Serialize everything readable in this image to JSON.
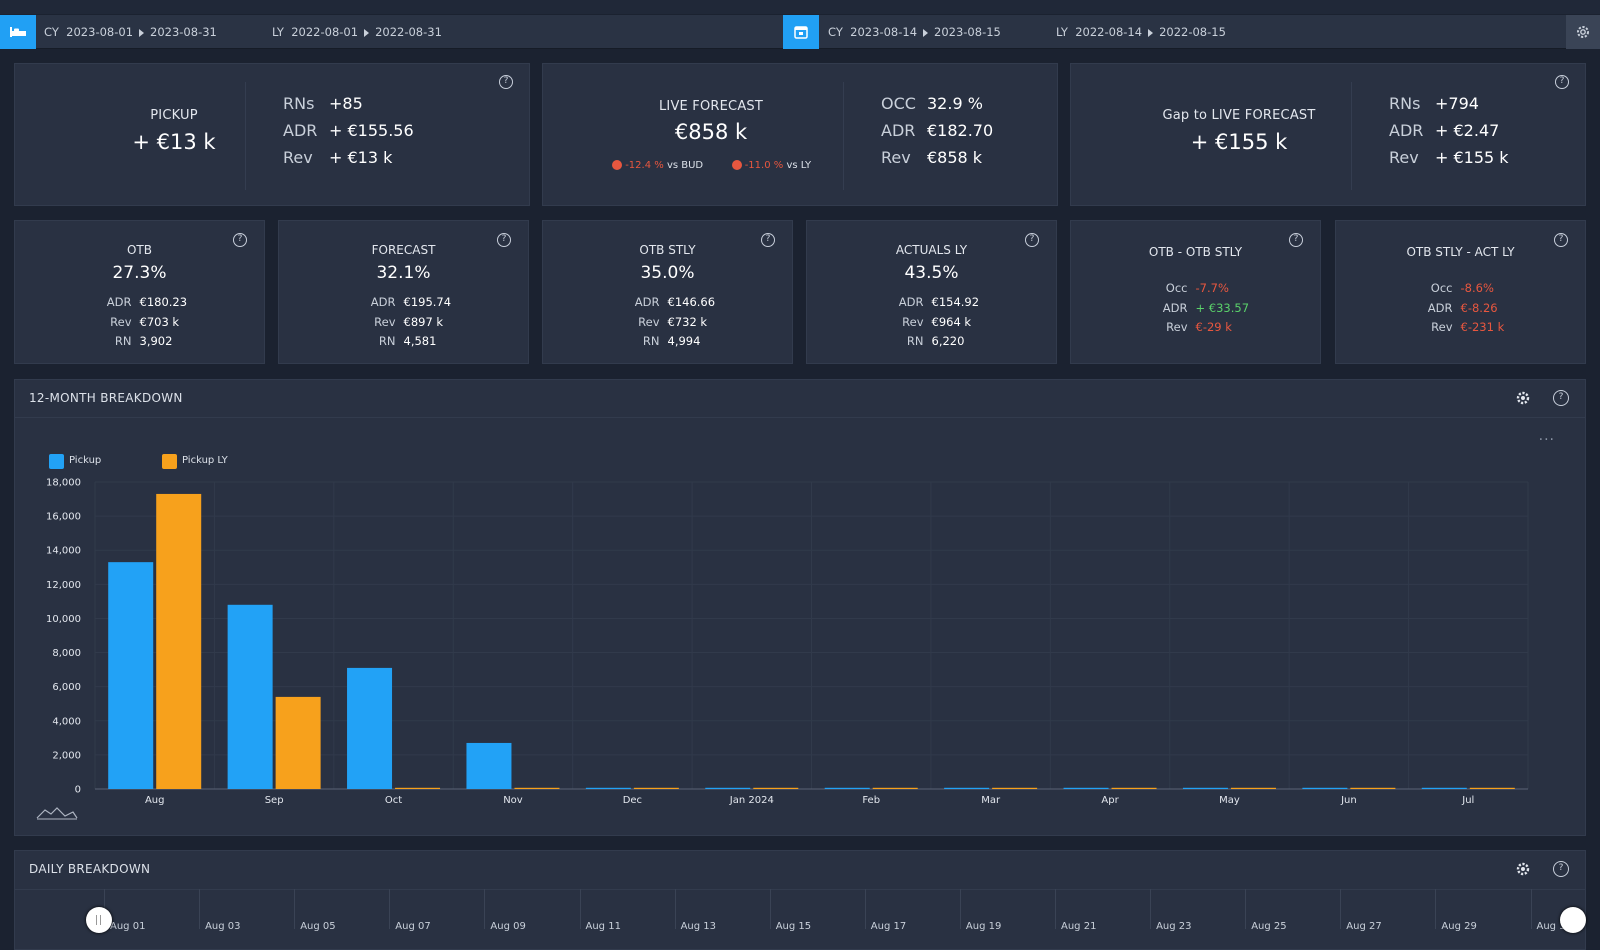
{
  "datebar": {
    "left_cy_label": "CY",
    "left_cy_from": "2023-08-01",
    "left_cy_to": "2023-08-31",
    "left_ly_label": "LY",
    "left_ly_from": "2022-08-01",
    "left_ly_to": "2022-08-31",
    "right_cy_label": "CY",
    "right_cy_from": "2023-08-14",
    "right_cy_to": "2023-08-15",
    "right_ly_label": "LY",
    "right_ly_from": "2022-08-14",
    "right_ly_to": "2022-08-15"
  },
  "pickup": {
    "label": "PICKUP",
    "value": "+ €13 k",
    "rows": [
      {
        "k": "RNs",
        "v": "+85"
      },
      {
        "k": "ADR",
        "v": "+ €155.56"
      },
      {
        "k": "Rev",
        "v": "+ €13 k"
      }
    ]
  },
  "forecast_card": {
    "label": "LIVE FORECAST",
    "value": "€858 k",
    "vs_bud": "-12.4 %",
    "vs_bud_label": "vs BUD",
    "vs_ly": "-11.0 %",
    "vs_ly_label": "vs LY",
    "rows": [
      {
        "k": "OCC",
        "v": "32.9 %"
      },
      {
        "k": "ADR",
        "v": "€182.70"
      },
      {
        "k": "Rev",
        "v": "€858 k"
      }
    ]
  },
  "gap": {
    "label": "Gap to LIVE FORECAST",
    "value": "+ €155 k",
    "rows": [
      {
        "k": "RNs",
        "v": "+794"
      },
      {
        "k": "ADR",
        "v": "+ €2.47"
      },
      {
        "k": "Rev",
        "v": "+ €155 k"
      }
    ]
  },
  "small_cards": [
    {
      "title": "OTB",
      "pct": "27.3%",
      "rows": [
        {
          "k": "ADR",
          "v": "€180.23"
        },
        {
          "k": "Rev",
          "v": "€703 k"
        },
        {
          "k": "RN",
          "v": "3,902"
        }
      ]
    },
    {
      "title": "FORECAST",
      "pct": "32.1%",
      "rows": [
        {
          "k": "ADR",
          "v": "€195.74"
        },
        {
          "k": "Rev",
          "v": "€897 k"
        },
        {
          "k": "RN",
          "v": "4,581"
        }
      ]
    },
    {
      "title": "OTB STLY",
      "pct": "35.0%",
      "rows": [
        {
          "k": "ADR",
          "v": "€146.66"
        },
        {
          "k": "Rev",
          "v": "€732 k"
        },
        {
          "k": "RN",
          "v": "4,994"
        }
      ]
    },
    {
      "title": "ACTUALS LY",
      "pct": "43.5%",
      "rows": [
        {
          "k": "ADR",
          "v": "€154.92"
        },
        {
          "k": "Rev",
          "v": "€964 k"
        },
        {
          "k": "RN",
          "v": "6,220"
        }
      ]
    },
    {
      "title": "OTB - OTB STLY",
      "rows": [
        {
          "k": "Occ",
          "v": "-7.7%"
        },
        {
          "k": "ADR",
          "v": "+ €33.57"
        },
        {
          "k": "Rev",
          "v": "€-29 k"
        }
      ]
    },
    {
      "title": "OTB STLY - ACT LY",
      "rows": [
        {
          "k": "Occ",
          "v": "-8.6%"
        },
        {
          "k": "ADR",
          "v": "€-8.26"
        },
        {
          "k": "Rev",
          "v": "€-231 k"
        }
      ]
    }
  ],
  "month_section": {
    "title": "12-MONTH BREAKDOWN"
  },
  "daily_section": {
    "title": "DAILY BREAKDOWN",
    "ticks": [
      "Aug 01",
      "Aug 03",
      "Aug 05",
      "Aug 07",
      "Aug 09",
      "Aug 11",
      "Aug 13",
      "Aug 15",
      "Aug 17",
      "Aug 19",
      "Aug 21",
      "Aug 23",
      "Aug 25",
      "Aug 27",
      "Aug 29",
      "Aug 31"
    ]
  },
  "colors": {
    "pickup": "#22a2f6",
    "pickup_ly": "#f7a11c",
    "accent": "#21a0f4",
    "negative": "#e8573f",
    "positive": "#5ad16a"
  },
  "chart_data": {
    "type": "bar",
    "categories": [
      "Aug",
      "Sep",
      "Oct",
      "Nov",
      "Dec",
      "Jan 2024",
      "Feb",
      "Mar",
      "Apr",
      "May",
      "Jun",
      "Jul"
    ],
    "series": [
      {
        "name": "Pickup",
        "values": [
          13300,
          10800,
          7100,
          2700,
          0,
          0,
          0,
          0,
          0,
          0,
          0,
          0
        ]
      },
      {
        "name": "Pickup LY",
        "values": [
          17300,
          5400,
          0,
          0,
          0,
          0,
          0,
          0,
          0,
          0,
          0,
          0
        ]
      }
    ],
    "yticks": [
      "0",
      "2,000",
      "4,000",
      "6,000",
      "8,000",
      "10,000",
      "12,000",
      "14,000",
      "16,000",
      "18,000"
    ],
    "ylim": [
      0,
      18000
    ],
    "grid": true,
    "legend": "top-left"
  }
}
